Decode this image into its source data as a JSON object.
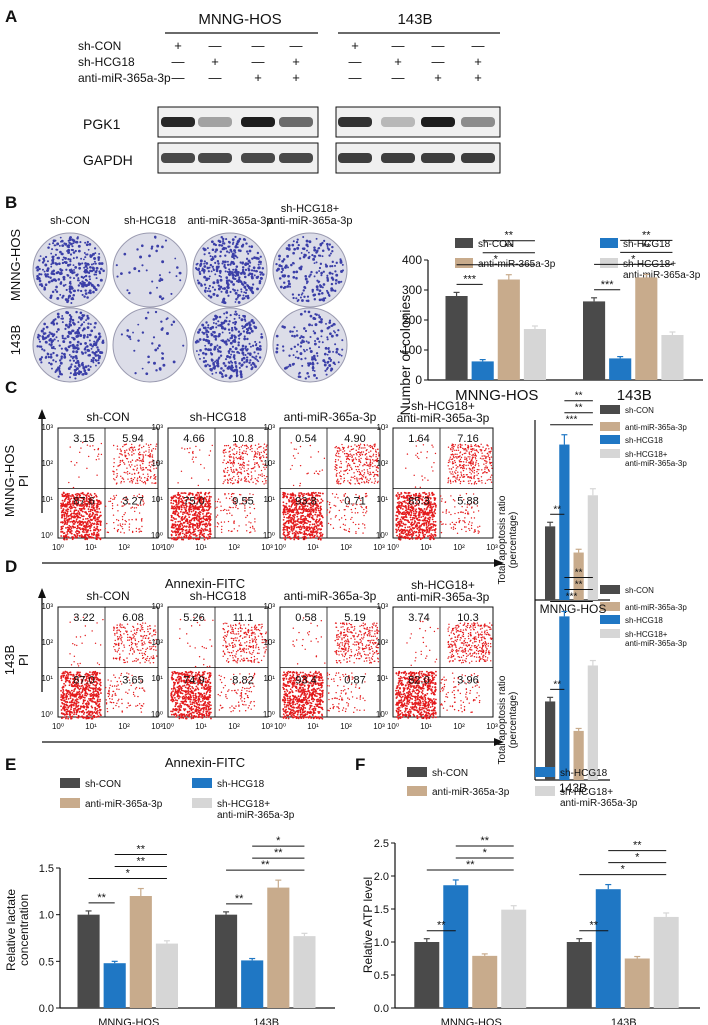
{
  "colors": {
    "con": "#4a4a4a",
    "hcg": "#1f77c4",
    "anti": "#c8ab8c",
    "combo": "#d6d6d6",
    "flow": "#e41a1c",
    "colony": "#3b3fa8"
  },
  "panels": {
    "A": "A",
    "B": "B",
    "C": "C",
    "D": "D",
    "E": "E",
    "F": "F"
  },
  "panelA": {
    "cell_lines": [
      "MNNG-HOS",
      "143B"
    ],
    "rows": [
      {
        "label": "sh-CON",
        "marks": [
          "+",
          "—",
          "—",
          "—"
        ]
      },
      {
        "label": "sh-HCG18",
        "marks": [
          "—",
          "+",
          "—",
          "+"
        ]
      },
      {
        "label": "anti-miR-365a-3p",
        "marks": [
          "—",
          "—",
          "+",
          "+"
        ]
      }
    ],
    "bands": [
      {
        "label": "PGK1",
        "intensity_hos": [
          0.9,
          0.35,
          0.95,
          0.6
        ],
        "intensity_143b": [
          0.85,
          0.25,
          0.95,
          0.45
        ]
      },
      {
        "label": "GAPDH",
        "intensity_hos": [
          0.75,
          0.75,
          0.75,
          0.75
        ],
        "intensity_143b": [
          0.8,
          0.8,
          0.8,
          0.8
        ]
      }
    ]
  },
  "panelB": {
    "col_labels": [
      "sh-CON",
      "sh-HCG18",
      "anti-miR-365a-3p",
      "sh-HCG18+\nanti-miR-365a-3p"
    ],
    "row_labels": [
      "MNNG-HOS",
      "143B"
    ],
    "density": [
      [
        0.9,
        0.12,
        0.95,
        0.55
      ],
      [
        0.85,
        0.12,
        0.92,
        0.45
      ]
    ]
  },
  "panelC": {
    "axis_y": "MNNG-HOS\nPI",
    "axis_x": "Annexin-FITC",
    "plot_titles": [
      "sh-CON",
      "sh-HCG18",
      "anti-miR-365a-3p",
      "sh-HCG18+\nanti-miR-365a-3p"
    ],
    "quadrants": [
      [
        "3.15",
        "5.94",
        "87.6",
        "3.27"
      ],
      [
        "4.66",
        "10.8",
        "75.0",
        "9.55"
      ],
      [
        "0.54",
        "4.90",
        "93.8",
        "0.71"
      ],
      [
        "1.64",
        "7.16",
        "85.3",
        "5.88"
      ]
    ],
    "tick_labels": [
      "10⁰",
      "10¹",
      "10²",
      "10³"
    ]
  },
  "panelD": {
    "axis_y": "143B\nPI",
    "axis_x": "Annexin-FITC",
    "plot_titles": [
      "sh-CON",
      "sh-HCG18",
      "anti-miR-365a-3p",
      "sh-HCG18+\nanti-miR-365a-3p"
    ],
    "quadrants": [
      [
        "3.22",
        "6.08",
        "87.0",
        "3.65"
      ],
      [
        "5.26",
        "11.1",
        "74.9",
        "8.82"
      ],
      [
        "0.58",
        "5.19",
        "93.4",
        "0.87"
      ],
      [
        "3.74",
        "10.3",
        "82.0",
        "3.96"
      ]
    ],
    "tick_labels": [
      "10⁰",
      "10¹",
      "10²",
      "10³"
    ]
  },
  "legend": {
    "con": "sh-CON",
    "hcg": "sh-HCG18",
    "anti": "anti-miR-365a-3p",
    "combo": "sh-HCG18+\nanti-miR-365a-3p"
  },
  "chart_data": [
    {
      "id": "B",
      "type": "bar",
      "ylabel": "Number of colonies",
      "ylim": [
        0,
        400
      ],
      "yticks": [
        0,
        100,
        200,
        300,
        400
      ],
      "categories": [
        "MNNG-HOS",
        "143B"
      ],
      "series": [
        {
          "name": "sh-CON",
          "values": [
            280,
            262
          ],
          "err": [
            12,
            12
          ]
        },
        {
          "name": "sh-HCG18",
          "values": [
            62,
            72
          ],
          "err": [
            6,
            6
          ]
        },
        {
          "name": "anti-miR-365a-3p",
          "values": [
            335,
            342
          ],
          "err": [
            16,
            10
          ]
        },
        {
          "name": "sh-HCG18+ anti-miR-365a-3p",
          "values": [
            170,
            150
          ],
          "err": [
            10,
            10
          ]
        }
      ],
      "sig": [
        [
          [
            "0",
            "1",
            "***"
          ],
          [
            "0",
            "2",
            "*"
          ],
          [
            "1",
            "2",
            "**"
          ],
          [
            "1",
            "3",
            "**"
          ]
        ],
        [
          [
            "0",
            "1",
            "***"
          ],
          [
            "0",
            "2",
            "*"
          ],
          [
            "1",
            "2",
            "**"
          ],
          [
            "1",
            "3",
            "**"
          ]
        ]
      ]
    },
    {
      "id": "C",
      "type": "bar",
      "ylabel": "Total apoptosis ratio\n(percentage)",
      "xlabel": "MNNG-HOS",
      "ylim": [
        0,
        22
      ],
      "categories": [
        "MNNG-HOS"
      ],
      "series": [
        {
          "name": "sh-CON",
          "values": [
            9
          ],
          "err": [
            0.5
          ]
        },
        {
          "name": "sh-HCG18",
          "values": [
            19
          ],
          "err": [
            1.2
          ]
        },
        {
          "name": "anti-miR-365a-3p",
          "values": [
            5.8
          ],
          "err": [
            0.4
          ]
        },
        {
          "name": "sh-HCG18+ anti-miR-365a-3p",
          "values": [
            12.8
          ],
          "err": [
            0.8
          ]
        }
      ],
      "sig": [
        [
          [
            "0",
            "1",
            "**"
          ],
          [
            "0",
            "2",
            "***"
          ],
          [
            "1",
            "2",
            "**"
          ],
          [
            "1",
            "3",
            "**"
          ]
        ]
      ]
    },
    {
      "id": "D",
      "type": "bar",
      "ylabel": "Total apoptosis ratio\n(percentage)",
      "xlabel": "143B",
      "ylim": [
        0,
        22
      ],
      "categories": [
        "143B"
      ],
      "series": [
        {
          "name": "sh-CON",
          "values": [
            9.6
          ],
          "err": [
            0.5
          ]
        },
        {
          "name": "sh-HCG18",
          "values": [
            20
          ],
          "err": [
            0.6
          ]
        },
        {
          "name": "anti-miR-365a-3p",
          "values": [
            6
          ],
          "err": [
            0.3
          ]
        },
        {
          "name": "sh-HCG18+ anti-miR-365a-3p",
          "values": [
            14
          ],
          "err": [
            0.6
          ]
        }
      ],
      "sig": [
        [
          [
            "0",
            "1",
            "**"
          ],
          [
            "0",
            "2",
            "***"
          ],
          [
            "1",
            "2",
            "**"
          ],
          [
            "1",
            "3",
            "**"
          ]
        ]
      ]
    },
    {
      "id": "E",
      "type": "bar",
      "ylabel": "Relative lactate\nconcentration",
      "ylim": [
        0,
        1.5
      ],
      "yticks": [
        "0.0",
        "0.5",
        "1.0",
        "1.5"
      ],
      "categories": [
        "MNNG-HOS",
        "143B"
      ],
      "series": [
        {
          "name": "sh-CON",
          "values": [
            1.0,
            1.0
          ],
          "err": [
            0.04,
            0.03
          ]
        },
        {
          "name": "sh-HCG18",
          "values": [
            0.48,
            0.51
          ],
          "err": [
            0.02,
            0.02
          ]
        },
        {
          "name": "anti-miR-365a-3p",
          "values": [
            1.2,
            1.29
          ],
          "err": [
            0.08,
            0.08
          ]
        },
        {
          "name": "sh-HCG18+ anti-miR-365a-3p",
          "values": [
            0.69,
            0.77
          ],
          "err": [
            0.03,
            0.03
          ]
        }
      ],
      "sig": [
        [
          [
            "0",
            "1",
            "**"
          ],
          [
            "0",
            "2",
            "*"
          ],
          [
            "1",
            "2",
            "**"
          ],
          [
            "1",
            "3",
            "**"
          ]
        ],
        [
          [
            "0",
            "1",
            "**"
          ],
          [
            "0",
            "2",
            "**"
          ],
          [
            "1",
            "2",
            "**"
          ],
          [
            "1",
            "3",
            "*"
          ]
        ]
      ]
    },
    {
      "id": "F",
      "type": "bar",
      "ylabel": "Relative ATP level",
      "ylim": [
        0,
        2.5
      ],
      "yticks": [
        "0.0",
        "0.5",
        "1.0",
        "1.5",
        "2.0",
        "2.5"
      ],
      "categories": [
        "MNNG-HOS",
        "143B"
      ],
      "series": [
        {
          "name": "sh-CON",
          "values": [
            1.0,
            1.0
          ],
          "err": [
            0.05,
            0.05
          ]
        },
        {
          "name": "sh-HCG18",
          "values": [
            1.86,
            1.8
          ],
          "err": [
            0.08,
            0.07
          ]
        },
        {
          "name": "anti-miR-365a-3p",
          "values": [
            0.79,
            0.75
          ],
          "err": [
            0.03,
            0.03
          ]
        },
        {
          "name": "sh-HCG18+ anti-miR-365a-3p",
          "values": [
            1.49,
            1.38
          ],
          "err": [
            0.06,
            0.06
          ]
        }
      ],
      "sig": [
        [
          [
            "0",
            "1",
            "**"
          ],
          [
            "0",
            "2",
            "**"
          ],
          [
            "1",
            "2",
            "*"
          ],
          [
            "1",
            "3",
            "**"
          ]
        ],
        [
          [
            "0",
            "1",
            "**"
          ],
          [
            "0",
            "2",
            "*"
          ],
          [
            "1",
            "2",
            "*"
          ],
          [
            "1",
            "3",
            "**"
          ]
        ]
      ]
    }
  ]
}
